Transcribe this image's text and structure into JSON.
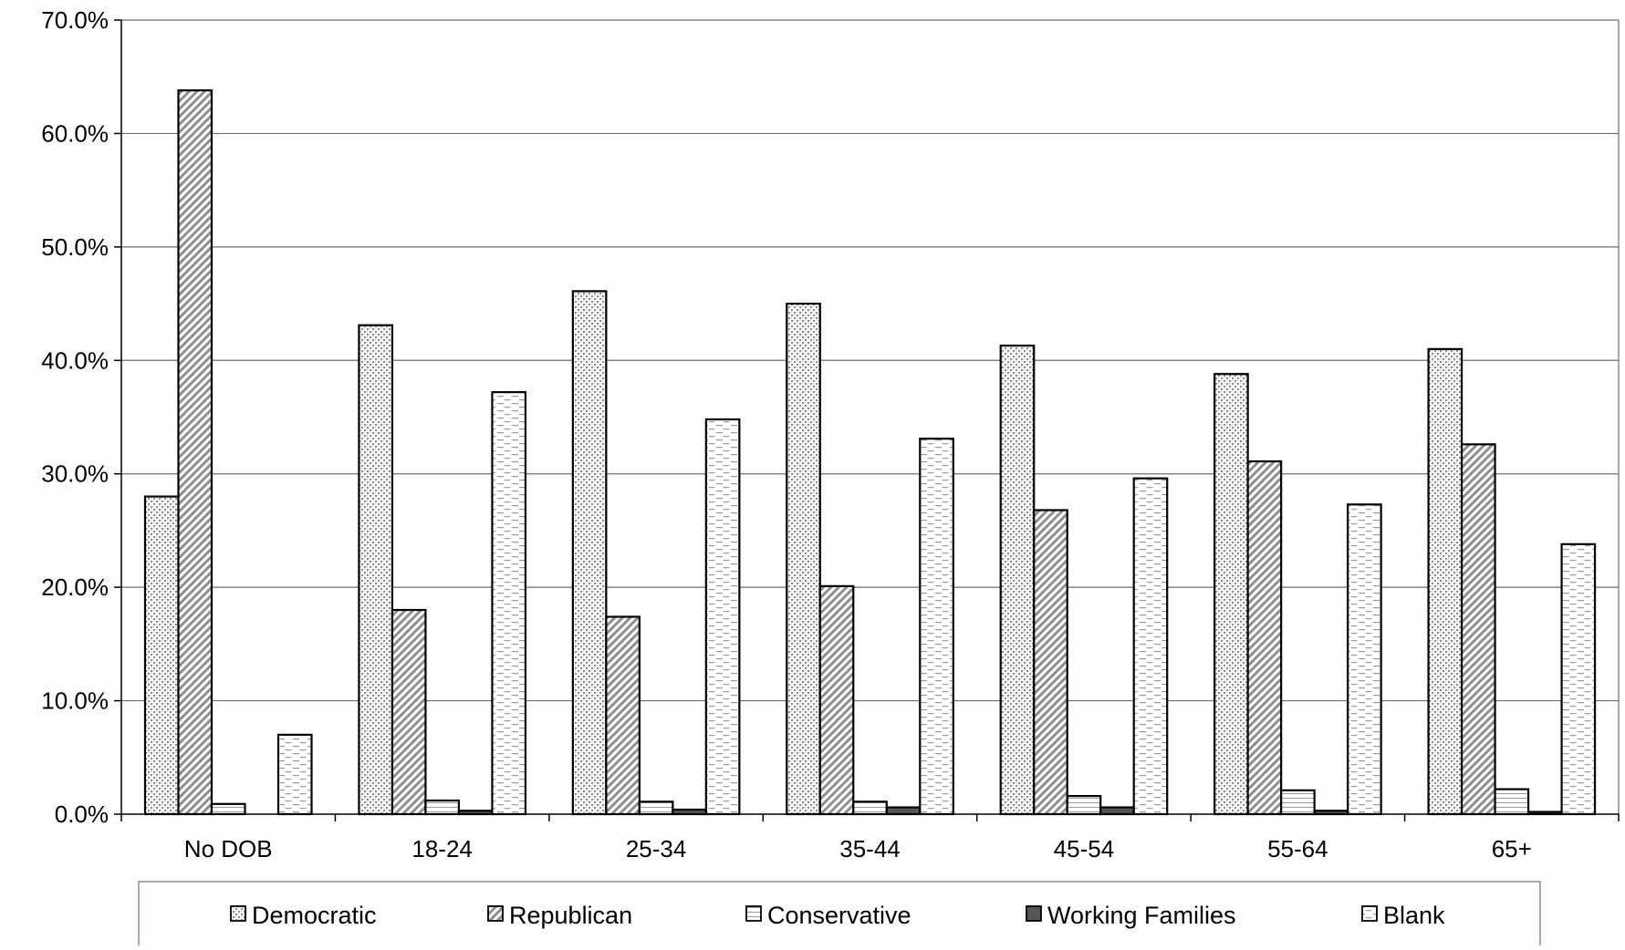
{
  "chart_data": {
    "type": "bar",
    "title": "",
    "xlabel": "",
    "ylabel": "",
    "ylim": [
      0,
      70
    ],
    "y_tick_values": [
      0,
      10,
      20,
      30,
      40,
      50,
      60,
      70
    ],
    "y_tick_labels": [
      "0.0%",
      "10.0%",
      "20.0%",
      "30.0%",
      "40.0%",
      "50.0%",
      "60.0%",
      "70.0%"
    ],
    "grid": "horizontal",
    "legend_position": "bottom",
    "categories": [
      "No DOB",
      "18-24",
      "25-34",
      "35-44",
      "45-54",
      "55-64",
      "65+"
    ],
    "series": [
      {
        "name": "Democratic",
        "pattern": "dots",
        "values": [
          28.0,
          43.1,
          46.1,
          45.0,
          41.3,
          38.8,
          41.0
        ]
      },
      {
        "name": "Republican",
        "pattern": "diagonal",
        "values": [
          63.8,
          18.0,
          17.4,
          20.1,
          26.8,
          31.1,
          32.6
        ]
      },
      {
        "name": "Conservative",
        "pattern": "horizontal-lines",
        "values": [
          0.9,
          1.2,
          1.1,
          1.1,
          1.6,
          2.1,
          2.2
        ]
      },
      {
        "name": "Working Families",
        "pattern": "solid-dark",
        "values": [
          0.0,
          0.3,
          0.4,
          0.6,
          0.6,
          0.3,
          0.2
        ]
      },
      {
        "name": "Blank",
        "pattern": "dashes",
        "values": [
          7.0,
          37.2,
          34.8,
          33.1,
          29.6,
          27.3,
          23.8
        ]
      }
    ]
  }
}
